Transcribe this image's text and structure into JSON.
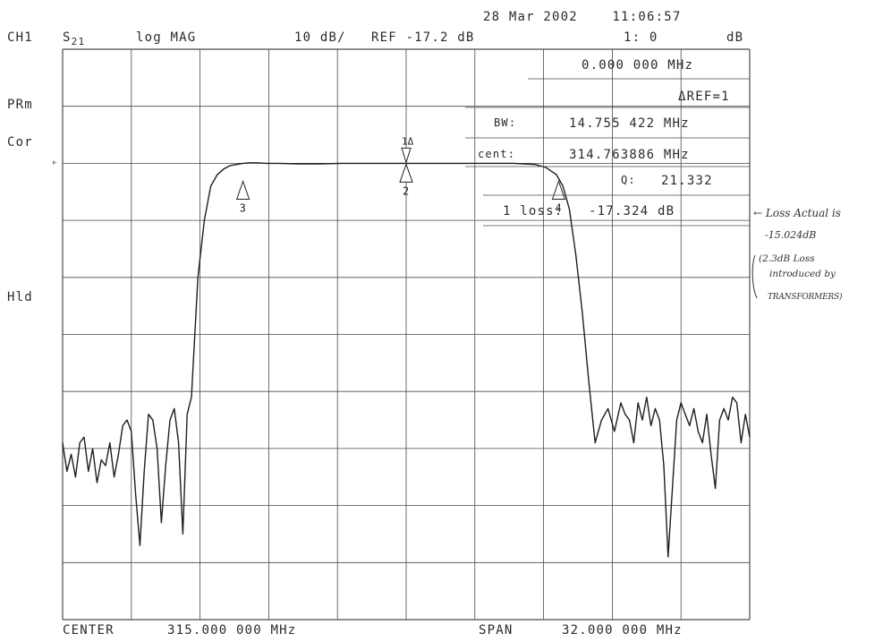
{
  "header": {
    "datetime": "28 Mar 2002    11:06:57",
    "channel": "CH1",
    "param_main": "S",
    "param_sub": "21",
    "format": "log MAG",
    "scale": "10 dB/",
    "ref": "REF -17.2 dB",
    "marker_readout": "1: 0",
    "marker_unit": "dB"
  },
  "side_labels": {
    "prm": "PRm",
    "cor": "Cor",
    "hld": "Hld",
    "ref_marker": "▹"
  },
  "readout": {
    "freq": "0.000 000 MHz",
    "delta_ref": "ΔREF=1",
    "bw_label": "BW:",
    "bw_value": "14.755 422 MHz",
    "cent_label": "cent:",
    "cent_value": "314.763886 MHz",
    "q_label": "Q:",
    "q_value": "21.332",
    "loss_label": "1 loss:",
    "loss_value": "-17.324 dB"
  },
  "annotation": {
    "line1": "← Loss Actual is",
    "line2": "-15.024dB",
    "line3": "(2.3dB Loss",
    "line4": "introduced by",
    "line5": "TRANSFORMERS)"
  },
  "footer": {
    "center_label": "CENTER",
    "center_value": "315.000 000 MHz",
    "span_label": "SPAN",
    "span_value": "32.000 000 MHz"
  },
  "chart_data": {
    "type": "line",
    "x_unit": "MHz",
    "y_unit": "dB",
    "x_center": 315.0,
    "x_span": 32.0,
    "xlim": [
      299.0,
      331.0
    ],
    "y_ref": -17.2,
    "y_scale_per_div": 10,
    "ylim": [
      -97.2,
      2.8
    ],
    "grid": true,
    "x_divisions": 10,
    "y_divisions": 10,
    "markers": [
      {
        "label": "1Δ",
        "x": 315.0,
        "y": -17.2
      },
      {
        "label": "2",
        "x": 315.0,
        "y": -17.2
      },
      {
        "label": "3",
        "x": 307.4,
        "y": -20.2
      },
      {
        "label": "4",
        "x": 322.1,
        "y": -20.2
      }
    ],
    "series": [
      {
        "x": [
          299.0,
          299.2,
          299.4,
          299.6,
          299.8,
          300.0,
          300.2,
          300.4,
          300.6,
          300.8,
          301.0,
          301.2,
          301.4,
          301.6,
          301.8,
          302.0,
          302.2,
          302.4,
          302.6,
          302.8,
          303.0,
          303.2,
          303.4,
          303.6,
          303.8,
          304.0,
          304.2,
          304.4,
          304.6,
          304.8,
          305.0,
          305.3,
          305.6,
          305.9,
          306.2,
          306.5,
          306.8,
          307.1,
          307.4,
          307.7,
          308.0,
          308.5,
          309.0,
          310.0,
          311.0,
          312.0,
          313.0,
          314.0,
          315.0,
          316.0,
          317.0,
          318.0,
          319.0,
          320.0,
          321.0,
          321.5,
          322.0,
          322.3,
          322.6,
          322.9,
          323.2,
          323.5,
          323.8,
          324.1,
          324.4,
          324.7,
          325.0,
          325.2,
          325.4,
          325.6,
          325.8,
          326.0,
          326.2,
          326.4,
          326.6,
          326.8,
          327.0,
          327.2,
          327.4,
          327.6,
          327.8,
          328.0,
          328.2,
          328.4,
          328.6,
          328.8,
          329.0,
          329.2,
          329.4,
          329.6,
          329.8,
          330.0,
          330.2,
          330.4,
          330.6,
          330.8,
          331.0
        ],
        "y": [
          -66.2,
          -71.2,
          -68.2,
          -72.2,
          -66.2,
          -65.2,
          -71.2,
          -67.2,
          -73.2,
          -69.2,
          -70.2,
          -66.2,
          -72.2,
          -68.2,
          -63.2,
          -62.2,
          -64.2,
          -75.2,
          -84.2,
          -71.2,
          -61.2,
          -62.2,
          -67.2,
          -80.2,
          -70.2,
          -62.2,
          -60.2,
          -66.2,
          -82.2,
          -61.2,
          -58.2,
          -37.2,
          -27.2,
          -21.2,
          -19.2,
          -18.2,
          -17.6,
          -17.4,
          -17.2,
          -17.1,
          -17.1,
          -17.2,
          -17.2,
          -17.3,
          -17.3,
          -17.2,
          -17.2,
          -17.2,
          -17.2,
          -17.2,
          -17.2,
          -17.2,
          -17.2,
          -17.2,
          -17.4,
          -17.9,
          -19.2,
          -21.2,
          -25.2,
          -33.2,
          -43.2,
          -55.2,
          -66.2,
          -62.2,
          -60.2,
          -64.2,
          -59.2,
          -61.2,
          -62.2,
          -66.2,
          -59.2,
          -62.2,
          -58.2,
          -63.2,
          -60.2,
          -62.2,
          -70.2,
          -86.2,
          -74.2,
          -62.2,
          -59.2,
          -61.2,
          -63.2,
          -60.2,
          -64.2,
          -66.2,
          -61.2,
          -68.2,
          -74.2,
          -62.2,
          -60.2,
          -62.2,
          -58.2,
          -59.2,
          -66.2,
          -61.2,
          -65.2
        ]
      }
    ]
  }
}
